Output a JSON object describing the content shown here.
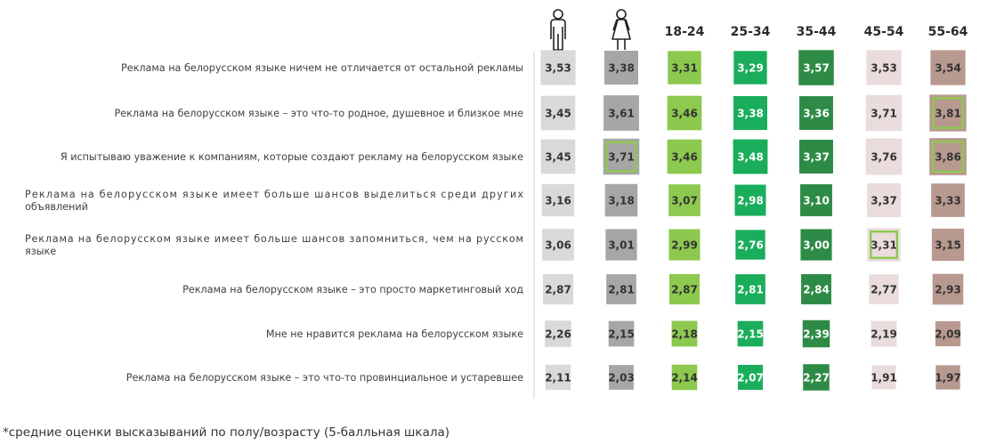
{
  "chart_data": {
    "type": "heatmap",
    "columns": [
      "",
      "",
      "18-24",
      "25-34",
      "35-44",
      "45-54",
      "55-64"
    ],
    "column_icons": [
      "male-icon",
      "female-icon",
      null,
      null,
      null,
      null,
      null
    ],
    "column_colors": [
      "#d9d9d9",
      "#a6a6a6",
      "#8dc94e",
      "#1aad5b",
      "#2e8b46",
      "#eadcdc",
      "#b8998f"
    ],
    "rows": [
      {
        "label": [
          "Реклама на белорусском языке ничем не отличается от остальной рекламы"
        ],
        "values": [
          "3,53",
          "3,38",
          "3,31",
          "3,29",
          "3,57",
          "3,53",
          "3,54"
        ]
      },
      {
        "label": [
          "Реклама на белорусском языке – это что-то родное, душевное и близкое мне"
        ],
        "values": [
          "3,45",
          "3,61",
          "3,46",
          "3,38",
          "3,36",
          "3,71",
          "3,81"
        ]
      },
      {
        "label": [
          "Я испытываю уважение к компаниям, которые создают рекламу на белорусском языке"
        ],
        "values": [
          "3,45",
          "3,71",
          "3,46",
          "3,48",
          "3,37",
          "3,76",
          "3,86"
        ]
      },
      {
        "label": [
          "Реклама на белорусском языке имеет больше шансов выделиться среди других",
          "объявлений"
        ],
        "values": [
          "3,16",
          "3,18",
          "3,07",
          "2,98",
          "3,10",
          "3,37",
          "3,33"
        ]
      },
      {
        "label": [
          "Реклама на белорусском языке имеет больше шансов запомниться, чем на русском",
          "языке"
        ],
        "values": [
          "3,06",
          "3,01",
          "2,99",
          "2,76",
          "3,00",
          "3,31",
          "3,15"
        ]
      },
      {
        "label": [
          "Реклама на белорусском языке – это просто маркетинговый ход"
        ],
        "values": [
          "2,87",
          "2,81",
          "2,87",
          "2,81",
          "2,84",
          "2,77",
          "2,93"
        ]
      },
      {
        "label": [
          "Мне не нравится реклама на белорусском языке"
        ],
        "values": [
          "2,26",
          "2,15",
          "2,18",
          "2,15",
          "2,39",
          "2,19",
          "2,09"
        ]
      },
      {
        "label": [
          "Реклама на белорусском языке – это что-то провинциальное и устаревшее"
        ],
        "values": [
          "2,11",
          "2,03",
          "2,14",
          "2,07",
          "2,27",
          "1,91",
          "1,97"
        ]
      }
    ],
    "highlighted_cells": [
      [
        1,
        6
      ],
      [
        2,
        1
      ],
      [
        2,
        6
      ],
      [
        4,
        5
      ]
    ],
    "highlight_color": "#8dc94e",
    "scale": [
      1.8,
      3.9
    ]
  },
  "footnote": "*средние оценки высказываний по полу/возрасту (5-балльная шкала)"
}
